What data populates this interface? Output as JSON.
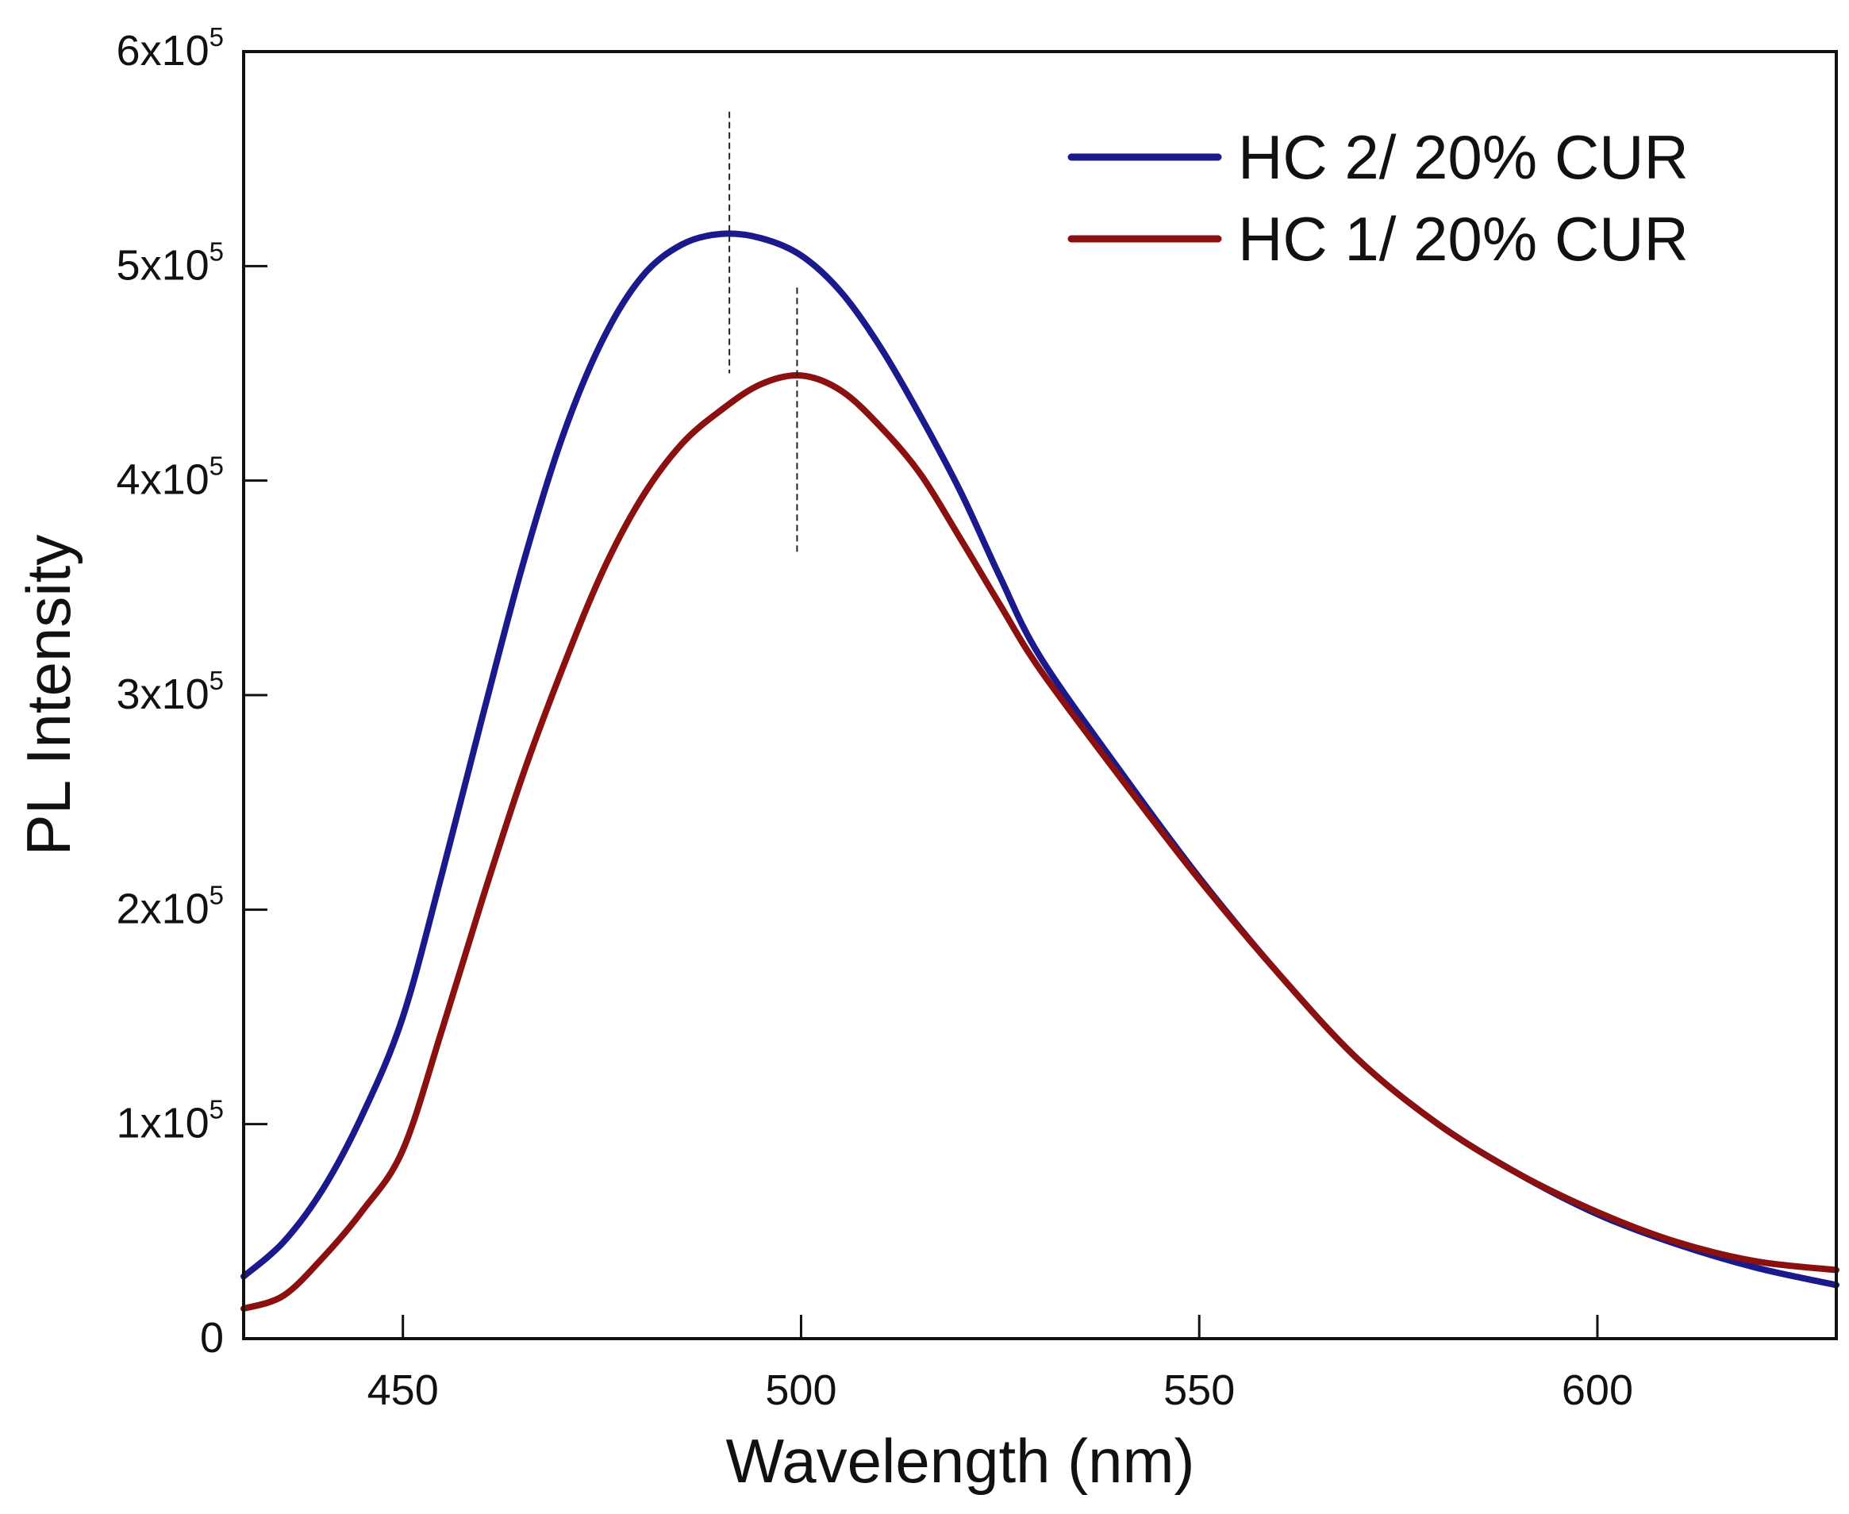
{
  "chart_data": {
    "type": "line",
    "title": "",
    "xlabel": "Wavelength (nm)",
    "ylabel": "PL Intensity",
    "xlim": [
      430,
      630
    ],
    "ylim": [
      0,
      600000
    ],
    "x_ticks": [
      450,
      500,
      550,
      600
    ],
    "x_tick_labels": [
      "450",
      "500",
      "550",
      "600"
    ],
    "y_ticks": [
      0,
      100000,
      200000,
      300000,
      400000,
      500000,
      600000
    ],
    "y_tick_labels": [
      {
        "base": "0",
        "exp": ""
      },
      {
        "base": "1x10",
        "exp": "5"
      },
      {
        "base": "2x10",
        "exp": "5"
      },
      {
        "base": "3x10",
        "exp": "5"
      },
      {
        "base": "4x10",
        "exp": "5"
      },
      {
        "base": "5x10",
        "exp": "5"
      },
      {
        "base": "6x10",
        "exp": "5"
      }
    ],
    "grid": false,
    "legend_position": "top-right",
    "series": [
      {
        "name": "HC 2/ 20% CUR",
        "color": "#1a1a8c",
        "x": [
          430,
          435,
          440,
          445,
          450,
          455,
          460,
          465,
          470,
          475,
          480,
          485,
          490,
          495,
          500,
          505,
          510,
          515,
          520,
          525,
          530,
          540,
          550,
          560,
          570,
          580,
          590,
          600,
          610,
          620,
          630
        ],
        "y": [
          29000,
          45000,
          70000,
          105000,
          150000,
          218000,
          290000,
          360000,
          420000,
          465000,
          495000,
          510000,
          515000,
          513000,
          505000,
          488000,
          462000,
          430000,
          395000,
          355000,
          318000,
          265000,
          215000,
          170000,
          130000,
          100000,
          77000,
          58000,
          44000,
          33000,
          25000
        ]
      },
      {
        "name": "HC 1/ 20% CUR",
        "color": "#8b1010",
        "x": [
          430,
          435,
          440,
          445,
          450,
          455,
          460,
          465,
          470,
          475,
          480,
          485,
          490,
          495,
          500,
          505,
          510,
          515,
          520,
          525,
          530,
          540,
          550,
          560,
          570,
          580,
          590,
          600,
          610,
          620,
          630
        ],
        "y": [
          14000,
          20000,
          38000,
          60000,
          88000,
          145000,
          205000,
          262000,
          312000,
          357000,
          392000,
          417000,
          433000,
          445000,
          449000,
          442000,
          425000,
          403000,
          373000,
          342000,
          312000,
          262000,
          214000,
          170000,
          130000,
          100000,
          77000,
          59000,
          45000,
          36000,
          32000
        ]
      }
    ],
    "annotations": [
      {
        "type": "dashed-vline",
        "x": 491,
        "y_from": 450000,
        "y_to": 572000
      },
      {
        "type": "dashed-vline",
        "x": 499.5,
        "y_from": 366000,
        "y_to": 490000
      }
    ]
  }
}
